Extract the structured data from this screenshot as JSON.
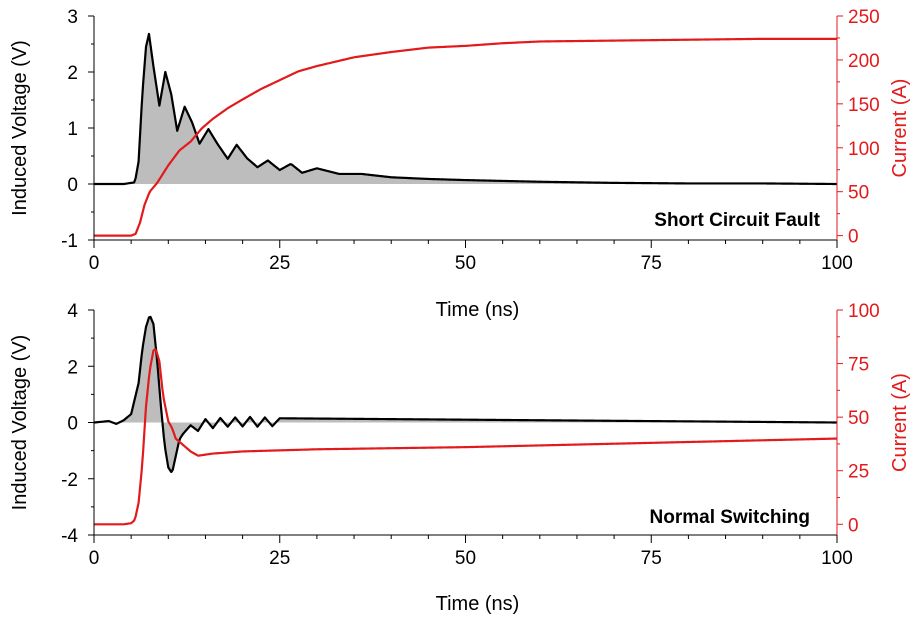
{
  "colors": {
    "voltage": "#000000",
    "current": "#e31a1c",
    "fill": "#bdbdbd",
    "axis": "#000000"
  },
  "chart_data": [
    {
      "type": "line",
      "annotation": "Short Circuit Fault",
      "xlabel": "Time (ns)",
      "ylabel_left": "Induced Voltage (V)",
      "ylabel_right": "Current (A)",
      "xlim": [
        0,
        100
      ],
      "ylim_left": [
        -1,
        3
      ],
      "ylim_right": [
        -5,
        250
      ],
      "xticks": [
        "0",
        "25",
        "50",
        "75",
        "100"
      ],
      "yticks_left": [
        "-1",
        "0",
        "1",
        "2",
        "3"
      ],
      "yticks_right": [
        "0",
        "50",
        "100",
        "150",
        "200",
        "250"
      ],
      "grid": false,
      "series": [
        {
          "axis": "left",
          "color": "#000000",
          "filled": true,
          "x": [
            0,
            2,
            4,
            5.5,
            6,
            6.5,
            7,
            7.4,
            8,
            8.8,
            9.6,
            10.4,
            11.2,
            12.2,
            13.2,
            14.2,
            15.4,
            16.6,
            18,
            19.2,
            20.6,
            22,
            23.4,
            25,
            26.5,
            28,
            30,
            33,
            36,
            40,
            45,
            50,
            60,
            70,
            80,
            90,
            100
          ],
          "y": [
            0,
            0,
            0,
            0.03,
            0.4,
            1.6,
            2.45,
            2.68,
            2.1,
            1.4,
            2.0,
            1.6,
            0.95,
            1.38,
            1.1,
            0.72,
            0.98,
            0.72,
            0.45,
            0.7,
            0.46,
            0.3,
            0.42,
            0.25,
            0.36,
            0.2,
            0.28,
            0.18,
            0.18,
            0.12,
            0.09,
            0.07,
            0.04,
            0.02,
            0.01,
            0.01,
            0.0
          ]
        },
        {
          "axis": "right",
          "color": "#e31a1c",
          "filled": false,
          "x": [
            0,
            2,
            4,
            5,
            5.6,
            6.2,
            6.8,
            7.5,
            8.5,
            10,
            11.5,
            13,
            14.5,
            16,
            18,
            20,
            22.5,
            25,
            27.5,
            30,
            35,
            40,
            45,
            50,
            55,
            60,
            70,
            80,
            90,
            100
          ],
          "y": [
            0,
            0,
            0,
            0,
            2,
            15,
            35,
            50,
            60,
            80,
            97,
            107,
            122,
            133,
            145,
            155,
            167,
            177,
            187,
            193,
            203,
            209,
            214,
            216,
            219,
            221,
            222,
            223,
            224,
            224
          ]
        }
      ]
    },
    {
      "type": "line",
      "annotation": "Normal Switching",
      "xlabel": "Time (ns)",
      "ylabel_left": "Induced Voltage (V)",
      "ylabel_right": "Current (A)",
      "xlim": [
        0,
        100
      ],
      "ylim_left": [
        -4,
        4
      ],
      "ylim_right": [
        -5,
        100
      ],
      "xticks": [
        "0",
        "25",
        "50",
        "75",
        "100"
      ],
      "yticks_left": [
        "-4",
        "-2",
        "0",
        "2",
        "4"
      ],
      "yticks_right": [
        "0",
        "25",
        "50",
        "75",
        "100"
      ],
      "grid": false,
      "series": [
        {
          "axis": "left",
          "color": "#000000",
          "filled": true,
          "x": [
            0,
            2,
            3,
            4,
            5,
            6,
            6.5,
            7,
            7.5,
            8,
            8.5,
            9,
            9.5,
            10,
            10.5,
            11,
            11.5,
            12,
            13,
            14,
            15,
            16,
            17,
            18,
            19,
            20,
            21,
            22,
            23,
            24,
            25,
            100
          ],
          "y": [
            0,
            0.05,
            -0.05,
            0.08,
            0.3,
            1.4,
            2.6,
            3.4,
            3.82,
            3.5,
            2.2,
            0.6,
            -0.8,
            -1.6,
            -1.8,
            -1.2,
            -0.6,
            -0.4,
            -0.1,
            -0.3,
            0.12,
            -0.2,
            0.16,
            -0.15,
            0.18,
            -0.14,
            0.2,
            -0.15,
            0.18,
            -0.13,
            0.15,
            0.0
          ]
        },
        {
          "axis": "right",
          "color": "#e31a1c",
          "filled": false,
          "x": [
            0,
            2,
            4,
            5,
            5.5,
            6,
            6.5,
            7,
            7.5,
            8,
            8.3,
            8.8,
            9.3,
            10,
            10.5,
            11,
            12,
            13,
            14,
            16,
            20,
            30,
            50,
            75,
            100
          ],
          "y": [
            0,
            0,
            0,
            0.5,
            2,
            10,
            28,
            55,
            72,
            81,
            82,
            76,
            60,
            48,
            45,
            40,
            37,
            34,
            32,
            33,
            34,
            35,
            36,
            38,
            40
          ]
        }
      ]
    }
  ]
}
